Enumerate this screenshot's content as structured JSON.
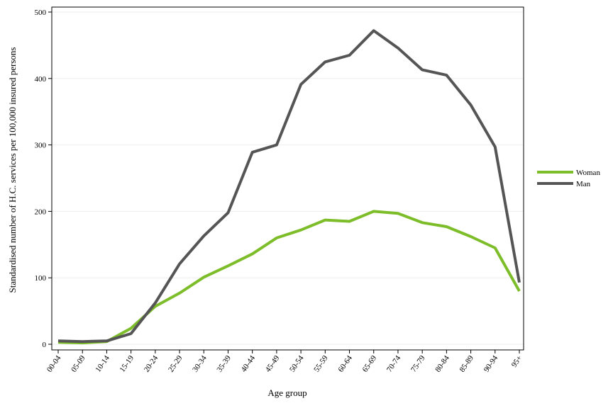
{
  "chart_data": {
    "type": "line",
    "title": "",
    "xlabel": "Age group",
    "ylabel": "Standardised number of H.C. services per 100,000 insured persons",
    "categories": [
      "00-04",
      "05-09",
      "10-14",
      "15-19",
      "20-24",
      "25-29",
      "30-34",
      "35-39",
      "40-44",
      "45-49",
      "50-54",
      "55-59",
      "60-64",
      "65-69",
      "70-74",
      "75-79",
      "80-84",
      "85-89",
      "90-94",
      "95+"
    ],
    "yticks": [
      0,
      100,
      200,
      300,
      400,
      500
    ],
    "ylim": [
      0,
      500
    ],
    "grid": true,
    "legend_position": "right",
    "series": [
      {
        "name": "Woman",
        "color": "#7dbd2a",
        "values": [
          3,
          2,
          4,
          24,
          57,
          77,
          101,
          118,
          136,
          160,
          172,
          187,
          185,
          200,
          197,
          183,
          177,
          162,
          145,
          80
        ]
      },
      {
        "name": "Man",
        "color": "#555555",
        "values": [
          5,
          4,
          5,
          16,
          62,
          121,
          163,
          198,
          289,
          300,
          391,
          425,
          435,
          472,
          446,
          413,
          405,
          360,
          297,
          93
        ]
      }
    ]
  }
}
